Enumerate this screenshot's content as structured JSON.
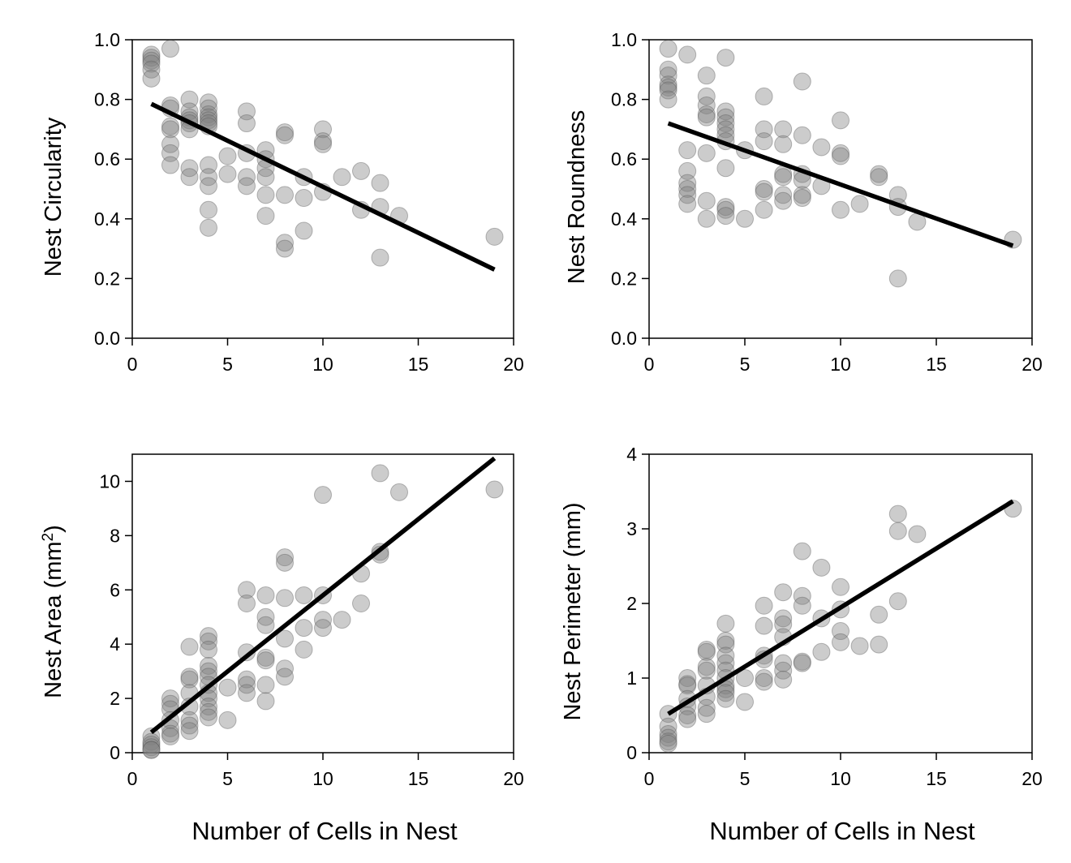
{
  "figure": {
    "xlabel": "Number of Cells in Nest"
  },
  "chart_data": [
    {
      "type": "scatter",
      "ylabel": "Nest Circularity",
      "xlim": [
        0,
        20
      ],
      "ylim": [
        0,
        1
      ],
      "xticks": [
        "0",
        "5",
        "10",
        "15",
        "20"
      ],
      "yticks": [
        "0.0",
        "0.2",
        "0.4",
        "0.6",
        "0.8",
        "1.0"
      ],
      "point_color": "#808080",
      "fit_line": {
        "x": [
          1,
          19
        ],
        "y": [
          0.785,
          0.23
        ]
      },
      "points": [
        [
          1,
          0.95
        ],
        [
          1,
          0.94
        ],
        [
          1,
          0.93
        ],
        [
          1,
          0.92
        ],
        [
          1,
          0.9
        ],
        [
          1,
          0.87
        ],
        [
          2,
          0.97
        ],
        [
          2,
          0.78
        ],
        [
          2,
          0.77
        ],
        [
          2,
          0.71
        ],
        [
          2,
          0.7
        ],
        [
          2,
          0.65
        ],
        [
          2,
          0.62
        ],
        [
          2,
          0.58
        ],
        [
          3,
          0.8
        ],
        [
          3,
          0.76
        ],
        [
          3,
          0.74
        ],
        [
          3,
          0.73
        ],
        [
          3,
          0.72
        ],
        [
          3,
          0.7
        ],
        [
          3,
          0.57
        ],
        [
          3,
          0.54
        ],
        [
          4,
          0.79
        ],
        [
          4,
          0.77
        ],
        [
          4,
          0.75
        ],
        [
          4,
          0.74
        ],
        [
          4,
          0.73
        ],
        [
          4,
          0.72
        ],
        [
          4,
          0.71
        ],
        [
          4,
          0.58
        ],
        [
          4,
          0.54
        ],
        [
          4,
          0.51
        ],
        [
          4,
          0.43
        ],
        [
          4,
          0.37
        ],
        [
          5,
          0.61
        ],
        [
          5,
          0.55
        ],
        [
          6,
          0.76
        ],
        [
          6,
          0.72
        ],
        [
          6,
          0.62
        ],
        [
          6,
          0.54
        ],
        [
          6,
          0.51
        ],
        [
          7,
          0.63
        ],
        [
          7,
          0.6
        ],
        [
          7,
          0.57
        ],
        [
          7,
          0.54
        ],
        [
          7,
          0.48
        ],
        [
          7,
          0.41
        ],
        [
          8,
          0.69
        ],
        [
          8,
          0.68
        ],
        [
          8,
          0.48
        ],
        [
          8,
          0.32
        ],
        [
          8,
          0.3
        ],
        [
          9,
          0.54
        ],
        [
          9,
          0.47
        ],
        [
          9,
          0.36
        ],
        [
          10,
          0.7
        ],
        [
          10,
          0.66
        ],
        [
          10,
          0.65
        ],
        [
          10,
          0.49
        ],
        [
          11,
          0.54
        ],
        [
          12,
          0.56
        ],
        [
          12,
          0.43
        ],
        [
          13,
          0.52
        ],
        [
          13,
          0.44
        ],
        [
          13,
          0.27
        ],
        [
          14,
          0.41
        ],
        [
          19,
          0.34
        ]
      ]
    },
    {
      "type": "scatter",
      "ylabel": "Nest Roundness",
      "xlim": [
        0,
        20
      ],
      "ylim": [
        0,
        1
      ],
      "xticks": [
        "0",
        "5",
        "10",
        "15",
        "20"
      ],
      "yticks": [
        "0.0",
        "0.2",
        "0.4",
        "0.6",
        "0.8",
        "1.0"
      ],
      "point_color": "#808080",
      "fit_line": {
        "x": [
          1,
          19
        ],
        "y": [
          0.72,
          0.31
        ]
      },
      "points": [
        [
          1,
          0.97
        ],
        [
          1,
          0.9
        ],
        [
          1,
          0.88
        ],
        [
          1,
          0.85
        ],
        [
          1,
          0.84
        ],
        [
          1,
          0.83
        ],
        [
          1,
          0.8
        ],
        [
          2,
          0.95
        ],
        [
          2,
          0.63
        ],
        [
          2,
          0.56
        ],
        [
          2,
          0.52
        ],
        [
          2,
          0.5
        ],
        [
          2,
          0.48
        ],
        [
          2,
          0.45
        ],
        [
          3,
          0.88
        ],
        [
          3,
          0.81
        ],
        [
          3,
          0.78
        ],
        [
          3,
          0.75
        ],
        [
          3,
          0.74
        ],
        [
          3,
          0.62
        ],
        [
          3,
          0.46
        ],
        [
          3,
          0.4
        ],
        [
          4,
          0.94
        ],
        [
          4,
          0.76
        ],
        [
          4,
          0.74
        ],
        [
          4,
          0.72
        ],
        [
          4,
          0.7
        ],
        [
          4,
          0.68
        ],
        [
          4,
          0.66
        ],
        [
          4,
          0.57
        ],
        [
          4,
          0.44
        ],
        [
          4,
          0.43
        ],
        [
          4,
          0.41
        ],
        [
          5,
          0.63
        ],
        [
          5,
          0.4
        ],
        [
          6,
          0.81
        ],
        [
          6,
          0.7
        ],
        [
          6,
          0.66
        ],
        [
          6,
          0.5
        ],
        [
          6,
          0.49
        ],
        [
          6,
          0.43
        ],
        [
          7,
          0.7
        ],
        [
          7,
          0.65
        ],
        [
          7,
          0.55
        ],
        [
          7,
          0.54
        ],
        [
          7,
          0.48
        ],
        [
          7,
          0.46
        ],
        [
          8,
          0.86
        ],
        [
          8,
          0.68
        ],
        [
          8,
          0.55
        ],
        [
          8,
          0.53
        ],
        [
          8,
          0.48
        ],
        [
          8,
          0.47
        ],
        [
          9,
          0.64
        ],
        [
          9,
          0.51
        ],
        [
          10,
          0.73
        ],
        [
          10,
          0.62
        ],
        [
          10,
          0.61
        ],
        [
          10,
          0.43
        ],
        [
          11,
          0.45
        ],
        [
          12,
          0.55
        ],
        [
          12,
          0.54
        ],
        [
          13,
          0.48
        ],
        [
          13,
          0.44
        ],
        [
          13,
          0.2
        ],
        [
          14,
          0.39
        ],
        [
          19,
          0.33
        ]
      ]
    },
    {
      "type": "scatter",
      "ylabel": "Nest Area (mm",
      "ylabel_sup": "2",
      "ylabel_suffix": ")",
      "xlim": [
        0,
        20
      ],
      "ylim": [
        0,
        11
      ],
      "xticks": [
        "0",
        "5",
        "10",
        "15",
        "20"
      ],
      "yticks": [
        "0",
        "2",
        "4",
        "6",
        "8",
        "10"
      ],
      "point_color": "#808080",
      "fit_line": {
        "x": [
          1,
          19
        ],
        "y": [
          0.75,
          10.85
        ]
      },
      "points": [
        [
          1,
          0.6
        ],
        [
          1,
          0.4
        ],
        [
          1,
          0.3
        ],
        [
          1,
          0.2
        ],
        [
          1,
          0.1
        ],
        [
          1,
          0.1
        ],
        [
          2,
          2.0
        ],
        [
          2,
          1.8
        ],
        [
          2,
          1.6
        ],
        [
          2,
          1.2
        ],
        [
          2,
          0.9
        ],
        [
          2,
          0.7
        ],
        [
          2,
          0.6
        ],
        [
          3,
          3.9
        ],
        [
          3,
          2.8
        ],
        [
          3,
          2.7
        ],
        [
          3,
          2.2
        ],
        [
          3,
          1.7
        ],
        [
          3,
          1.2
        ],
        [
          3,
          1.0
        ],
        [
          3,
          0.8
        ],
        [
          4,
          4.3
        ],
        [
          4,
          4.1
        ],
        [
          4,
          3.8
        ],
        [
          4,
          3.2
        ],
        [
          4,
          3.0
        ],
        [
          4,
          2.8
        ],
        [
          4,
          2.5
        ],
        [
          4,
          2.2
        ],
        [
          4,
          2.0
        ],
        [
          4,
          1.7
        ],
        [
          4,
          1.5
        ],
        [
          4,
          1.3
        ],
        [
          5,
          2.4
        ],
        [
          5,
          1.2
        ],
        [
          6,
          6.0
        ],
        [
          6,
          5.5
        ],
        [
          6,
          3.7
        ],
        [
          6,
          2.7
        ],
        [
          6,
          2.5
        ],
        [
          6,
          2.2
        ],
        [
          7,
          5.8
        ],
        [
          7,
          5.0
        ],
        [
          7,
          4.7
        ],
        [
          7,
          3.5
        ],
        [
          7,
          3.4
        ],
        [
          7,
          2.5
        ],
        [
          7,
          1.9
        ],
        [
          8,
          7.2
        ],
        [
          8,
          7.0
        ],
        [
          8,
          5.7
        ],
        [
          8,
          4.2
        ],
        [
          8,
          3.1
        ],
        [
          8,
          2.8
        ],
        [
          9,
          5.8
        ],
        [
          9,
          4.6
        ],
        [
          9,
          3.8
        ],
        [
          10,
          9.5
        ],
        [
          10,
          5.8
        ],
        [
          10,
          4.9
        ],
        [
          10,
          4.6
        ],
        [
          11,
          4.9
        ],
        [
          12,
          6.6
        ],
        [
          12,
          5.5
        ],
        [
          13,
          10.3
        ],
        [
          13,
          7.4
        ],
        [
          13,
          7.3
        ],
        [
          14,
          9.6
        ],
        [
          19,
          9.7
        ]
      ]
    },
    {
      "type": "scatter",
      "ylabel": "Nest Perimeter (mm)",
      "xlim": [
        0,
        20
      ],
      "ylim": [
        0,
        4
      ],
      "xticks": [
        "0",
        "5",
        "10",
        "15",
        "20"
      ],
      "yticks": [
        "0",
        "1",
        "2",
        "3",
        "4"
      ],
      "point_color": "#808080",
      "fit_line": {
        "x": [
          1,
          19
        ],
        "y": [
          0.52,
          3.37
        ]
      },
      "points": [
        [
          1,
          0.52
        ],
        [
          1,
          0.35
        ],
        [
          1,
          0.25
        ],
        [
          1,
          0.2
        ],
        [
          1,
          0.15
        ],
        [
          1,
          0.12
        ],
        [
          2,
          1.0
        ],
        [
          2,
          0.92
        ],
        [
          2,
          0.9
        ],
        [
          2,
          0.72
        ],
        [
          2,
          0.62
        ],
        [
          2,
          0.5
        ],
        [
          2,
          0.45
        ],
        [
          3,
          1.38
        ],
        [
          3,
          1.35
        ],
        [
          3,
          1.15
        ],
        [
          3,
          1.1
        ],
        [
          3,
          0.9
        ],
        [
          3,
          0.75
        ],
        [
          3,
          0.6
        ],
        [
          3,
          0.52
        ],
        [
          4,
          1.73
        ],
        [
          4,
          1.5
        ],
        [
          4,
          1.45
        ],
        [
          4,
          1.3
        ],
        [
          4,
          1.2
        ],
        [
          4,
          1.1
        ],
        [
          4,
          1.0
        ],
        [
          4,
          0.9
        ],
        [
          4,
          0.85
        ],
        [
          4,
          0.8
        ],
        [
          4,
          0.72
        ],
        [
          5,
          1.0
        ],
        [
          5,
          0.68
        ],
        [
          6,
          1.97
        ],
        [
          6,
          1.7
        ],
        [
          6,
          1.3
        ],
        [
          6,
          1.25
        ],
        [
          6,
          1.0
        ],
        [
          6,
          0.95
        ],
        [
          7,
          2.15
        ],
        [
          7,
          1.8
        ],
        [
          7,
          1.72
        ],
        [
          7,
          1.55
        ],
        [
          7,
          1.2
        ],
        [
          7,
          1.1
        ],
        [
          7,
          0.98
        ],
        [
          8,
          2.7
        ],
        [
          8,
          2.1
        ],
        [
          8,
          1.97
        ],
        [
          8,
          1.22
        ],
        [
          8,
          1.2
        ],
        [
          9,
          2.48
        ],
        [
          9,
          1.8
        ],
        [
          9,
          1.35
        ],
        [
          10,
          2.22
        ],
        [
          10,
          1.92
        ],
        [
          10,
          1.63
        ],
        [
          10,
          1.48
        ],
        [
          11,
          1.43
        ],
        [
          12,
          1.85
        ],
        [
          12,
          1.45
        ],
        [
          13,
          3.2
        ],
        [
          13,
          2.97
        ],
        [
          13,
          2.03
        ],
        [
          14,
          2.93
        ],
        [
          19,
          3.27
        ]
      ]
    }
  ]
}
